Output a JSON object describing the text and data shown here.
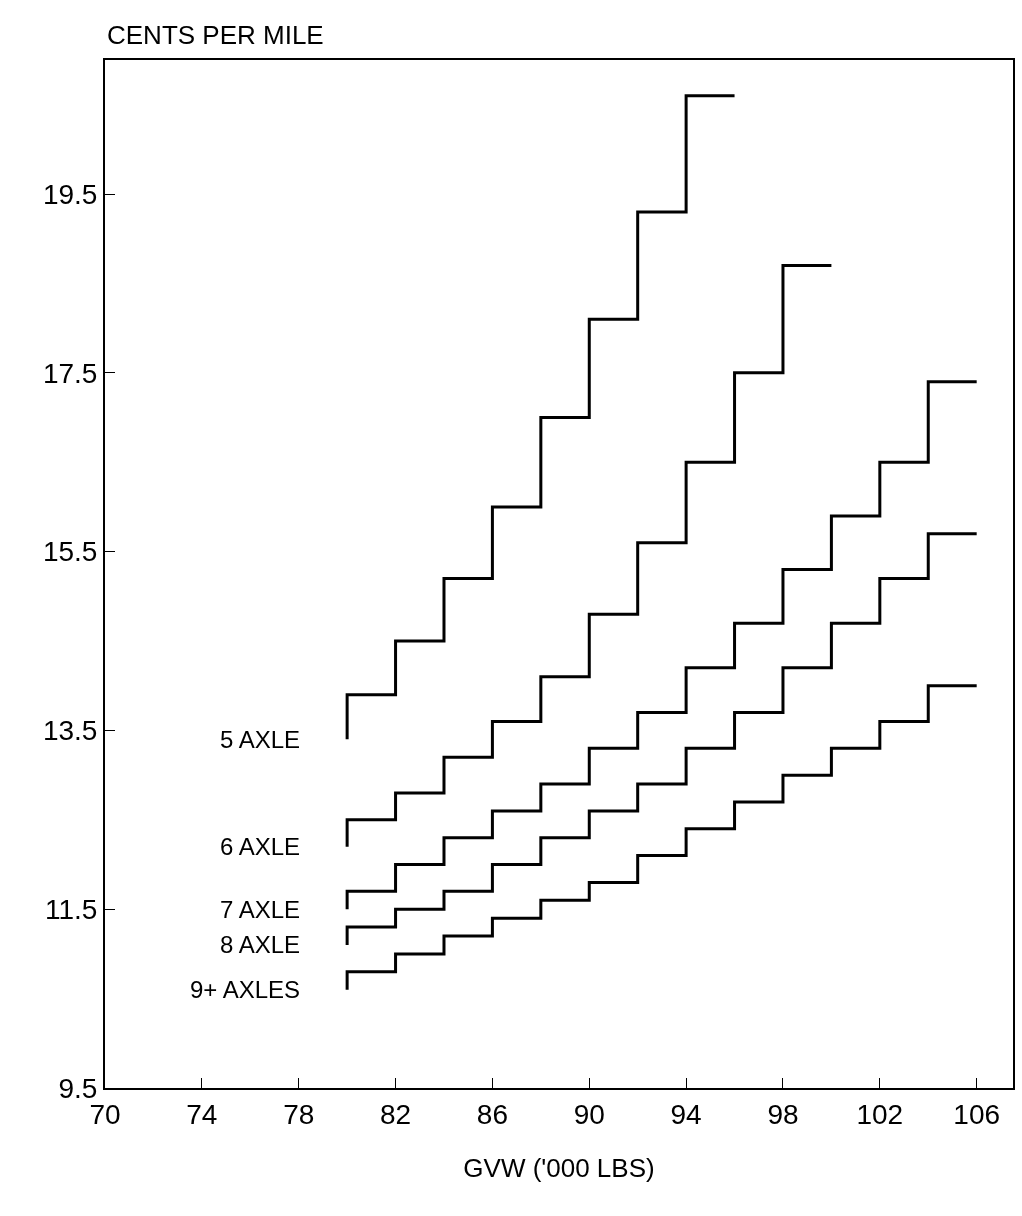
{
  "chart_data": {
    "type": "step",
    "ylabel": "CENTS PER MILE",
    "xlabel": "GVW ('000 LBS)",
    "grid": false,
    "legend": false,
    "marker": "none",
    "line_style": "solid",
    "xlim": [
      70,
      107.5
    ],
    "xticks": [
      70,
      74,
      78,
      82,
      86,
      90,
      94,
      98,
      102,
      106
    ],
    "ylim": [
      9.5,
      21
    ],
    "yticks": [
      9.5,
      11.5,
      13.5,
      15.5,
      17.5,
      19.5
    ],
    "series": [
      {
        "name": "5 AXLE",
        "color": "#000000",
        "x": [
          80,
          80,
          82,
          84,
          86,
          88,
          90,
          92,
          94,
          96
        ],
        "values": [
          13.4,
          13.9,
          14.5,
          15.2,
          16.0,
          17.0,
          18.1,
          19.3,
          20.6,
          20.6
        ]
      },
      {
        "name": "6 AXLE",
        "color": "#000000",
        "x": [
          80,
          80,
          82,
          84,
          86,
          88,
          90,
          92,
          94,
          96,
          98,
          100
        ],
        "values": [
          12.2,
          12.5,
          12.8,
          13.2,
          13.6,
          14.1,
          14.8,
          15.6,
          16.5,
          17.5,
          18.7,
          18.7
        ]
      },
      {
        "name": "7 AXLE",
        "color": "#000000",
        "x": [
          80,
          80,
          82,
          84,
          86,
          88,
          90,
          92,
          94,
          96,
          98,
          100,
          102,
          104,
          106
        ],
        "values": [
          11.5,
          11.7,
          12.0,
          12.3,
          12.6,
          12.9,
          13.3,
          13.7,
          14.2,
          14.7,
          15.3,
          15.9,
          16.5,
          17.4,
          17.4
        ]
      },
      {
        "name": "8 AXLE",
        "color": "#000000",
        "x": [
          80,
          80,
          82,
          84,
          86,
          88,
          90,
          92,
          94,
          96,
          98,
          100,
          102,
          104,
          106
        ],
        "values": [
          11.1,
          11.3,
          11.5,
          11.7,
          12.0,
          12.3,
          12.6,
          12.9,
          13.3,
          13.7,
          14.2,
          14.7,
          15.2,
          15.7,
          15.7
        ]
      },
      {
        "name": "9+ AXLES",
        "color": "#000000",
        "x": [
          80,
          80,
          82,
          84,
          86,
          88,
          90,
          92,
          94,
          96,
          98,
          100,
          102,
          104,
          106
        ],
        "values": [
          10.6,
          10.8,
          11.0,
          11.2,
          11.4,
          11.6,
          11.8,
          12.1,
          12.4,
          12.7,
          13.0,
          13.3,
          13.6,
          14.0,
          14.0
        ]
      }
    ]
  }
}
